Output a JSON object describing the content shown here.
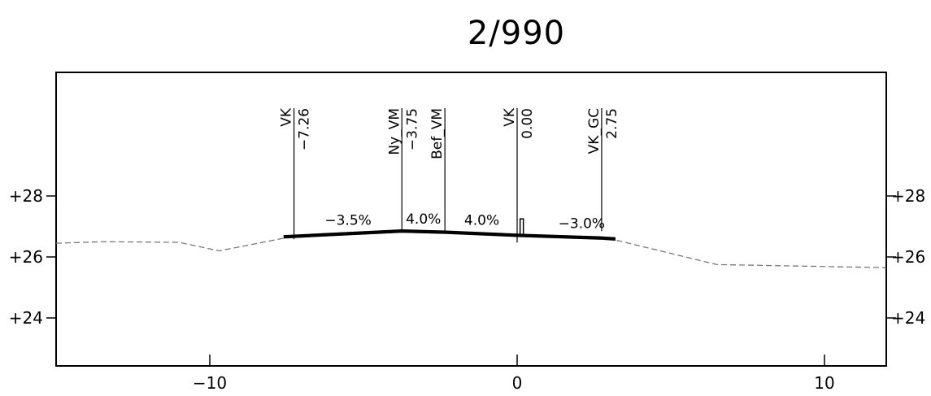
{
  "title": "2/990",
  "chart_data": {
    "type": "cross-section",
    "title": "2/990",
    "x_axis": {
      "range": [
        -15,
        12
      ],
      "ticks": [
        -10,
        0,
        10
      ],
      "tick_labels": [
        "−10",
        "0",
        "10"
      ]
    },
    "y_axis": {
      "range": [
        22.6,
        30.0
      ],
      "ticks": [
        28,
        26,
        24
      ],
      "tick_labels": [
        "+28",
        "+26",
        "+24"
      ]
    },
    "terrain": [
      [
        -15.0,
        26.45
      ],
      [
        -13.5,
        26.5
      ],
      [
        -11.0,
        26.48
      ],
      [
        -9.7,
        26.2
      ],
      [
        -7.26,
        26.68
      ],
      [
        -3.75,
        26.85
      ],
      [
        0.0,
        26.72
      ],
      [
        3.1,
        26.58
      ],
      [
        6.5,
        25.75
      ],
      [
        12.0,
        25.65
      ]
    ],
    "road_surface": [
      [
        -7.6,
        26.67
      ],
      [
        -3.75,
        26.86
      ],
      [
        -2.3,
        26.82
      ],
      [
        0.0,
        26.72
      ],
      [
        2.75,
        26.63
      ],
      [
        3.2,
        26.6
      ]
    ],
    "marker": {
      "x": 0.15,
      "y_from": 26.72,
      "y_to": 27.25
    },
    "stations": [
      {
        "name": "VK",
        "offset": "−7.26",
        "x": -7.26,
        "y_top": 29.0
      },
      {
        "name": "Ny_VM",
        "offset": "−3.75",
        "x": -3.75,
        "y_top": 29.0
      },
      {
        "name": "Bef_VM",
        "offset": "",
        "x": -2.35,
        "y_top": 29.0
      },
      {
        "name": "VK",
        "offset": "0.00",
        "x": 0.0,
        "y_top": 29.0
      },
      {
        "name": "VK_GC",
        "offset": "2.75",
        "x": 2.75,
        "y_top": 29.0
      }
    ],
    "slopes": [
      {
        "text": "−3.5%",
        "x": -5.5,
        "y": 27.05
      },
      {
        "text": "4.0%",
        "x": -3.05,
        "y": 27.1
      },
      {
        "text": "4.0%",
        "x": -1.15,
        "y": 27.05
      },
      {
        "text": "−3.0%",
        "x": 2.1,
        "y": 26.95
      }
    ]
  }
}
